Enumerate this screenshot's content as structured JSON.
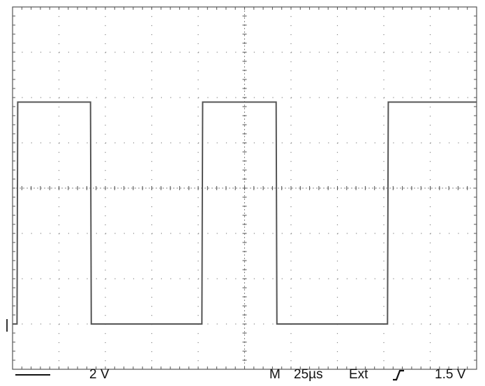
{
  "chart_data": {
    "type": "line",
    "title": "",
    "xlabel": "",
    "ylabel": "",
    "grid": true,
    "divisions": {
      "x": 10,
      "y": 8,
      "minor_per_division": 5
    },
    "x_unit": "µs",
    "y_unit": "V",
    "xlim": [
      0,
      250
    ],
    "ylim": [
      -8,
      8
    ],
    "series": [
      {
        "x": [
          0,
          2.4,
          2.8,
          42,
          42.4,
          102,
          102.4,
          142,
          142.4,
          202,
          202.4,
          250
        ],
        "y": [
          -6.0,
          -6.0,
          3.8,
          3.8,
          -6.0,
          -6.0,
          3.8,
          3.8,
          -6.0,
          -6.0,
          3.8,
          3.8
        ]
      }
    ]
  },
  "readouts": {
    "channel_scale": "2 V",
    "mode": "M",
    "timebase": "25µs",
    "trigger_source": "Ext",
    "trigger_slope_icon": "rising-edge-icon",
    "trigger_level": "1.5 V"
  },
  "colors": {
    "background": "#ffffff",
    "trace": "#555555",
    "graticule": "#555555",
    "grid_dots": "#8a8a8a"
  }
}
